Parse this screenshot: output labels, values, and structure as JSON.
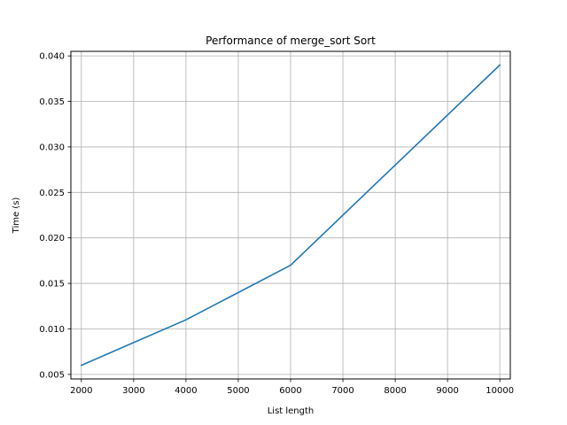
{
  "chart_data": {
    "type": "line",
    "title": "Performance of merge_sort Sort",
    "xlabel": "List length",
    "ylabel": "Time (s)",
    "xlim": [
      1800,
      10200
    ],
    "ylim": [
      0.0045,
      0.0405
    ],
    "x_ticks": [
      2000,
      3000,
      4000,
      5000,
      6000,
      7000,
      8000,
      9000,
      10000
    ],
    "x_tick_labels": [
      "2000",
      "3000",
      "4000",
      "5000",
      "6000",
      "7000",
      "8000",
      "9000",
      "10000"
    ],
    "y_ticks": [
      0.005,
      0.01,
      0.015,
      0.02,
      0.025,
      0.03,
      0.035,
      0.04
    ],
    "y_tick_labels": [
      "0.005",
      "0.010",
      "0.015",
      "0.020",
      "0.025",
      "0.030",
      "0.035",
      "0.040"
    ],
    "grid": true,
    "series": [
      {
        "x": [
          2000,
          4000,
          6000,
          8000,
          10000
        ],
        "y": [
          0.006,
          0.011,
          0.017,
          0.028,
          0.039
        ],
        "color": "#1f77b4"
      }
    ]
  }
}
